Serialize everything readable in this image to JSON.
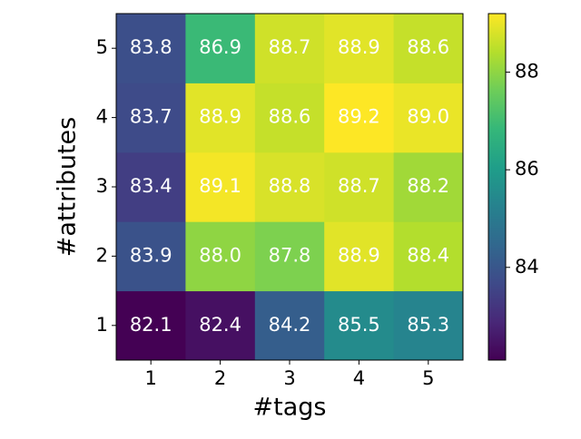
{
  "chart_data": {
    "type": "heatmap",
    "categories": [
      "1",
      "2",
      "3",
      "4",
      "5"
    ],
    "y_categories": [
      "1",
      "2",
      "3",
      "4",
      "5"
    ],
    "xlabel": "#tags",
    "ylabel": "#attributes",
    "values": [
      [
        82.1,
        82.4,
        84.2,
        85.5,
        85.3
      ],
      [
        83.9,
        88.0,
        87.8,
        88.9,
        88.4
      ],
      [
        83.4,
        89.1,
        88.8,
        88.7,
        88.2
      ],
      [
        83.7,
        88.9,
        88.6,
        89.2,
        89.0
      ],
      [
        83.8,
        86.9,
        88.7,
        88.9,
        88.6
      ]
    ],
    "value_labels": [
      [
        "82.1",
        "82.4",
        "84.2",
        "85.5",
        "85.3"
      ],
      [
        "83.9",
        "88.0",
        "87.8",
        "88.9",
        "88.4"
      ],
      [
        "83.4",
        "89.1",
        "88.8",
        "88.7",
        "88.2"
      ],
      [
        "83.7",
        "88.9",
        "88.6",
        "89.2",
        "89.0"
      ],
      [
        "83.8",
        "86.9",
        "88.7",
        "88.9",
        "88.6"
      ]
    ],
    "colormap": "viridis",
    "colorbar_ticks": [
      84,
      86,
      88
    ]
  }
}
